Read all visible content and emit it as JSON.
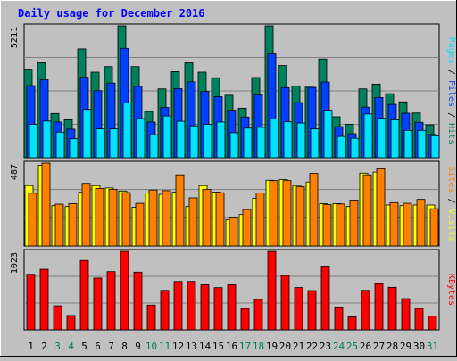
{
  "title": "Daily usage for December 2016",
  "colors": {
    "background": "#c0c0c0",
    "panel": "#c0c0c0",
    "title": "#0000ff",
    "hits": "#00805c",
    "files": "#0040ff",
    "pages": "#00e0ff",
    "visits": "#ffff00",
    "sites": "#ff8000",
    "kbytes": "#ff0000",
    "weekday_label": "#000000",
    "weekend_label": "#00805c"
  },
  "chart_data": [
    {
      "type": "bar",
      "title": "Daily usage for December 2016",
      "ylabel_parts": [
        {
          "text": "Pages",
          "color": "#00e0ff"
        },
        {
          "text": " / ",
          "color": "#000000"
        },
        {
          "text": "Files",
          "color": "#0040ff"
        },
        {
          "text": " / ",
          "color": "#000000"
        },
        {
          "text": "Hits",
          "color": "#00805c"
        }
      ],
      "ymax_label": "5211",
      "ylim": [
        0,
        5211
      ],
      "categories": [
        "1",
        "2",
        "3",
        "4",
        "5",
        "6",
        "7",
        "8",
        "9",
        "10",
        "11",
        "12",
        "13",
        "14",
        "15",
        "16",
        "17",
        "18",
        "19",
        "20",
        "21",
        "22",
        "23",
        "24",
        "25",
        "26",
        "27",
        "28",
        "29",
        "30",
        "31"
      ],
      "weekend_days": [
        "3",
        "4",
        "10",
        "11",
        "17",
        "18",
        "24",
        "25",
        "31"
      ],
      "series": [
        {
          "name": "Hits",
          "color": "#00805c",
          "values": [
            3500,
            3750,
            1750,
            1500,
            4300,
            3380,
            3600,
            5211,
            3600,
            1830,
            2720,
            3400,
            3750,
            3380,
            3160,
            2470,
            1960,
            3170,
            5211,
            3640,
            2840,
            2790,
            3900,
            1620,
            1320,
            2720,
            2910,
            2530,
            2210,
            1770,
            1300
          ]
        },
        {
          "name": "Files",
          "color": "#0040ff",
          "values": [
            2850,
            3080,
            1410,
            1130,
            3180,
            2650,
            2950,
            4320,
            2820,
            1410,
            1990,
            2730,
            3000,
            2620,
            2410,
            1880,
            1610,
            2480,
            4100,
            2770,
            2180,
            2780,
            2990,
            1230,
            950,
            2000,
            2380,
            2110,
            1760,
            1400,
            920
          ]
        },
        {
          "name": "Pages",
          "color": "#00e0ff",
          "values": [
            1320,
            1450,
            1010,
            750,
            1910,
            1140,
            1140,
            2170,
            1550,
            910,
            1650,
            1440,
            1260,
            1320,
            1410,
            990,
            1170,
            1200,
            1530,
            1420,
            1370,
            1140,
            1880,
            840,
            770,
            1730,
            1560,
            1500,
            1080,
            1080,
            870
          ]
        }
      ]
    },
    {
      "type": "bar",
      "ylabel_parts": [
        {
          "text": "Sites",
          "color": "#ff8000"
        },
        {
          "text": " / ",
          "color": "#000000"
        },
        {
          "text": "Visits",
          "color": "#ffff00"
        }
      ],
      "ymax_label": "487",
      "ylim": [
        0,
        487
      ],
      "categories": [
        "1",
        "2",
        "3",
        "4",
        "5",
        "6",
        "7",
        "8",
        "9",
        "10",
        "11",
        "12",
        "13",
        "14",
        "15",
        "16",
        "17",
        "18",
        "19",
        "20",
        "21",
        "22",
        "23",
        "24",
        "25",
        "26",
        "27",
        "28",
        "29",
        "30",
        "31"
      ],
      "series": [
        {
          "name": "Visits",
          "color": "#ffff00",
          "values": [
            355,
            474,
            237,
            232,
            316,
            355,
            341,
            323,
            228,
            312,
            303,
            316,
            232,
            355,
            317,
            155,
            185,
            280,
            386,
            390,
            355,
            376,
            249,
            249,
            232,
            428,
            434,
            241,
            237,
            241,
            241
          ]
        },
        {
          "name": "Sites",
          "color": "#ff8000",
          "values": [
            310,
            487,
            246,
            249,
            368,
            338,
            333,
            314,
            251,
            329,
            325,
            418,
            283,
            333,
            313,
            165,
            214,
            312,
            384,
            384,
            348,
            427,
            243,
            247,
            270,
            418,
            453,
            255,
            251,
            274,
            219
          ]
        }
      ]
    },
    {
      "type": "bar",
      "ylabel_parts": [
        {
          "text": "KBytes",
          "color": "#ff0000"
        }
      ],
      "ymax_label": "1023",
      "ylim": [
        0,
        1023
      ],
      "categories": [
        "1",
        "2",
        "3",
        "4",
        "5",
        "6",
        "7",
        "8",
        "9",
        "10",
        "11",
        "12",
        "13",
        "14",
        "15",
        "16",
        "17",
        "18",
        "19",
        "20",
        "21",
        "22",
        "23",
        "24",
        "25",
        "26",
        "27",
        "28",
        "29",
        "30",
        "31"
      ],
      "series": [
        {
          "name": "KBytes",
          "color": "#ff0000",
          "values": [
            724,
            790,
            313,
            187,
            904,
            675,
            759,
            1023,
            752,
            322,
            514,
            631,
            631,
            587,
            550,
            587,
            277,
            396,
            1023,
            709,
            551,
            511,
            831,
            298,
            169,
            514,
            602,
            554,
            406,
            279,
            181
          ]
        }
      ]
    }
  ]
}
